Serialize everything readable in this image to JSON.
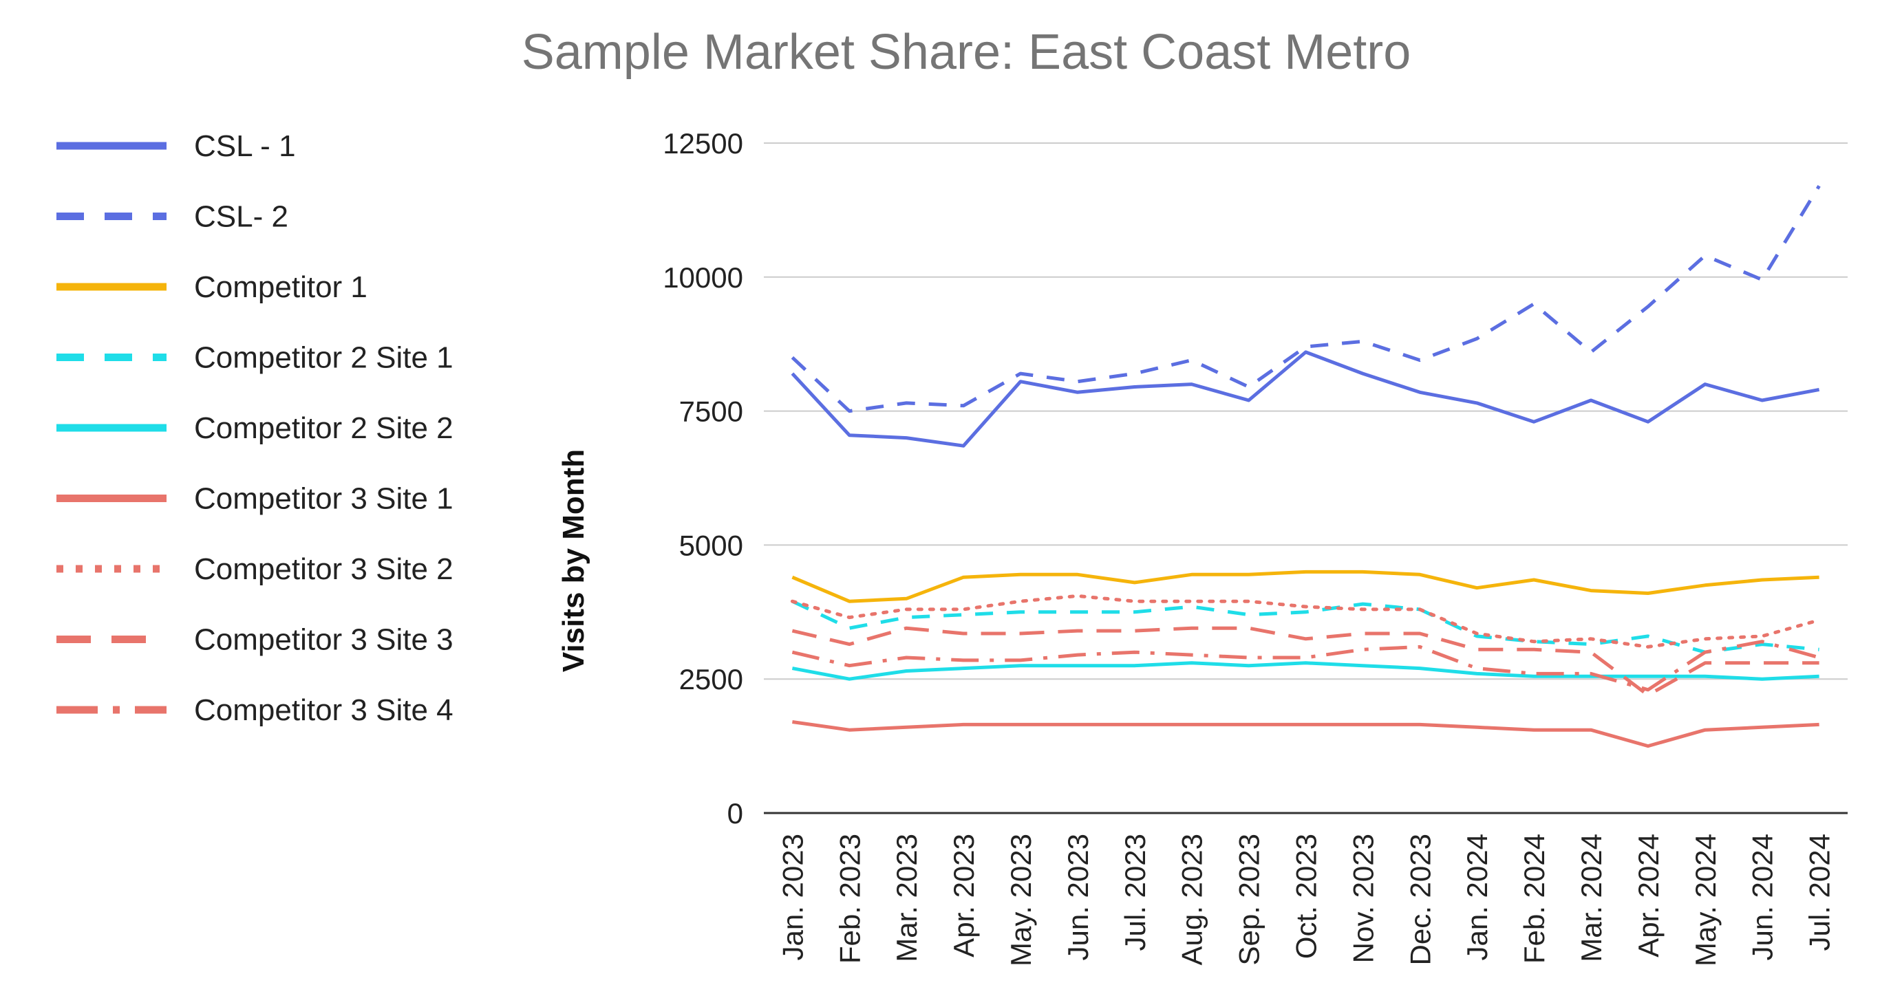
{
  "chart_data": {
    "type": "line",
    "title": "Sample Market Share: East Coast Metro",
    "xlabel": "",
    "ylabel": "Visits by Month",
    "ylim": [
      0,
      12500
    ],
    "yticks": [
      "12500",
      "10000",
      "7500",
      "5000",
      "2500",
      "0"
    ],
    "grid": true,
    "legend": "left",
    "categories": [
      "Jan. 2023",
      "Feb. 2023",
      "Mar. 2023",
      "Apr. 2023",
      "May. 2023",
      "Jun. 2023",
      "Jul. 2023",
      "Aug. 2023",
      "Sep. 2023",
      "Oct. 2023",
      "Nov. 2023",
      "Dec. 2023",
      "Jan. 2024",
      "Feb. 2024",
      "Mar. 2024",
      "Apr. 2024",
      "May. 2024",
      "Jun. 2024",
      "Jul. 2024"
    ],
    "series": [
      {
        "name": "CSL - 1",
        "color": "#5b6ee1",
        "dash": "solid",
        "values": [
          8200,
          7050,
          7000,
          6850,
          8050,
          7850,
          7950,
          8000,
          7700,
          8600,
          8200,
          7850,
          7650,
          7300,
          7700,
          7300,
          8000,
          7700,
          7900
        ]
      },
      {
        "name": "CSL- 2",
        "color": "#5b6ee1",
        "dash": "dash",
        "values": [
          8500,
          7500,
          7650,
          7600,
          8200,
          8050,
          8200,
          8450,
          7950,
          8700,
          8800,
          8450,
          8850,
          9500,
          8600,
          9450,
          10400,
          9950,
          11700
        ]
      },
      {
        "name": "Competitor 1",
        "color": "#f5b40b",
        "dash": "solid",
        "values": [
          4400,
          3950,
          4000,
          4400,
          4450,
          4450,
          4300,
          4450,
          4450,
          4500,
          4500,
          4450,
          4200,
          4350,
          4150,
          4100,
          4250,
          4350,
          4400
        ]
      },
      {
        "name": "Competitor 2 Site 1",
        "color": "#1fdde8",
        "dash": "dash",
        "values": [
          3950,
          3450,
          3650,
          3700,
          3750,
          3750,
          3750,
          3850,
          3700,
          3750,
          3900,
          3800,
          3300,
          3200,
          3150,
          3300,
          3000,
          3150,
          3050
        ]
      },
      {
        "name": "Competitor 2 Site 2",
        "color": "#1fdde8",
        "dash": "solid",
        "values": [
          2700,
          2500,
          2650,
          2700,
          2750,
          2750,
          2750,
          2800,
          2750,
          2800,
          2750,
          2700,
          2600,
          2550,
          2550,
          2550,
          2550,
          2500,
          2550
        ]
      },
      {
        "name": "Competitor 3 Site 1",
        "color": "#e8746b",
        "dash": "solid",
        "values": [
          1700,
          1550,
          1600,
          1650,
          1650,
          1650,
          1650,
          1650,
          1650,
          1650,
          1650,
          1650,
          1600,
          1550,
          1550,
          1250,
          1550,
          1600,
          1650
        ]
      },
      {
        "name": "Competitor 3 Site 2",
        "color": "#e8746b",
        "dash": "dot",
        "values": [
          3950,
          3650,
          3800,
          3800,
          3950,
          4050,
          3950,
          3950,
          3950,
          3850,
          3800,
          3800,
          3350,
          3200,
          3250,
          3100,
          3250,
          3300,
          3600
        ]
      },
      {
        "name": "Competitor 3 Site 3",
        "color": "#e8746b",
        "dash": "longdash",
        "values": [
          3400,
          3150,
          3450,
          3350,
          3350,
          3400,
          3400,
          3450,
          3450,
          3250,
          3350,
          3350,
          3050,
          3050,
          3000,
          2200,
          2800,
          2800,
          2800
        ]
      },
      {
        "name": "Competitor 3 Site 4",
        "color": "#e8746b",
        "dash": "dashdot",
        "values": [
          3000,
          2750,
          2900,
          2850,
          2850,
          2950,
          3000,
          2950,
          2900,
          2900,
          3050,
          3100,
          2700,
          2600,
          2600,
          2300,
          3000,
          3200,
          2900
        ]
      }
    ]
  }
}
